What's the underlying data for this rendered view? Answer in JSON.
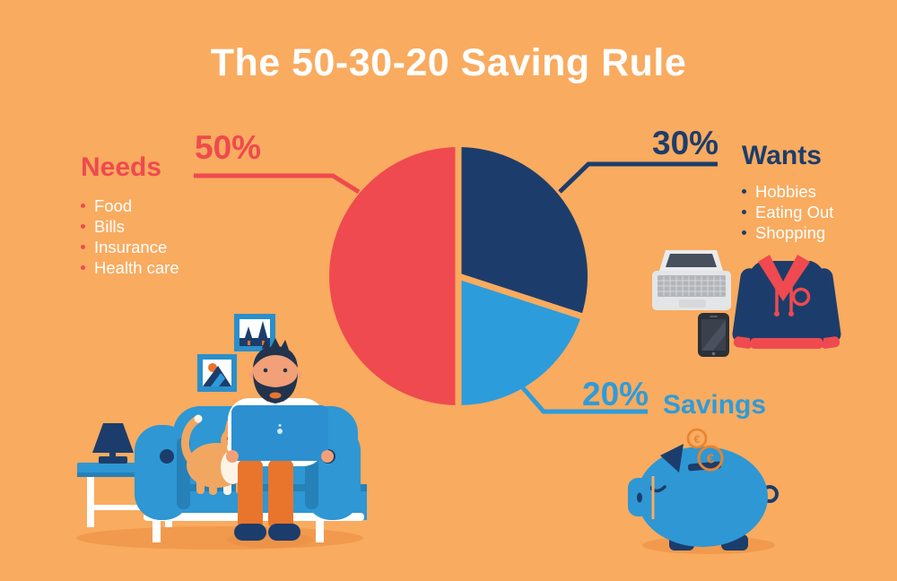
{
  "title": "The 50-30-20 Saving Rule",
  "colors": {
    "background": "#F9AB5F",
    "red": "#EF4A4F",
    "navy": "#1C3D6B",
    "blue": "#2D9CDB",
    "white": "#FFFFFF",
    "accent_orange": "#E8752B",
    "shadow_orange": "#F19A4D",
    "coin_orange": "#E8832F"
  },
  "chart_data": {
    "type": "pie",
    "title": "The 50-30-20 Saving Rule",
    "slices": [
      {
        "label": "Wants",
        "value": 30,
        "percent_label": "30%",
        "color": "#1C3D6B"
      },
      {
        "label": "Savings",
        "value": 20,
        "percent_label": "20%",
        "color": "#2D9CDB"
      },
      {
        "label": "Needs",
        "value": 50,
        "percent_label": "50%",
        "color": "#EF4A4F"
      }
    ],
    "start_angle_deg": 0,
    "direction": "clockwise",
    "slice_gap": true,
    "legend_position": "callouts"
  },
  "sections": {
    "needs": {
      "heading": "Needs",
      "percent": "50%",
      "items": [
        "Food",
        "Bills",
        "Insurance",
        "Health care"
      ]
    },
    "wants": {
      "heading": "Wants",
      "percent": "30%",
      "items": [
        "Hobbies",
        "Eating Out",
        "Shopping"
      ]
    },
    "savings": {
      "heading": "Savings",
      "percent": "20%",
      "items": []
    }
  },
  "icons": {
    "coin_symbol": "€"
  }
}
